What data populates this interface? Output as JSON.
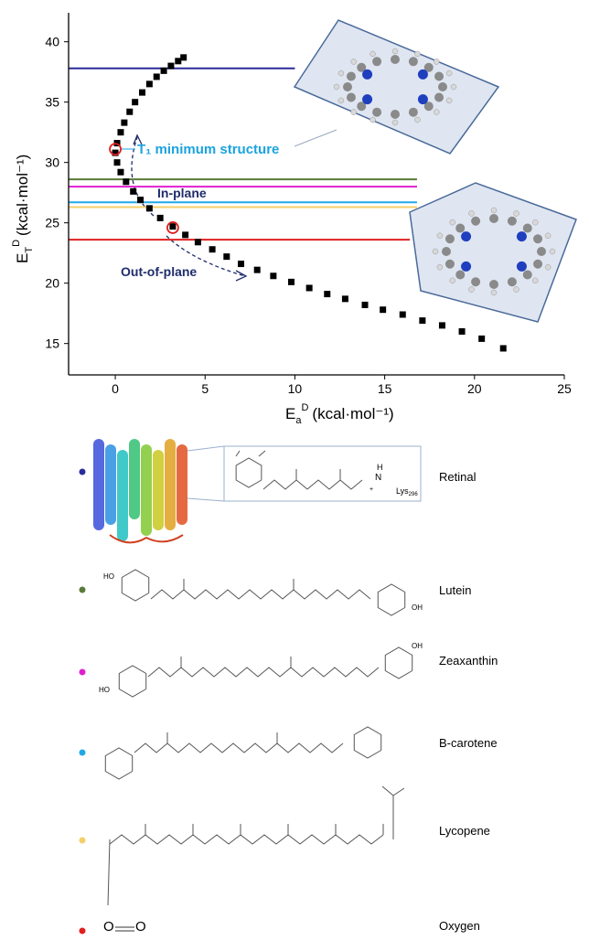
{
  "chart_data": {
    "type": "scatter",
    "xlabel": {
      "symbol": "E",
      "sub": "a",
      "sup": "D",
      "unit": "(kcal·mol⁻¹)"
    },
    "ylabel": {
      "symbol": "E",
      "sub": "T",
      "sup": "D",
      "unit": "(kcal·mol⁻¹)"
    },
    "x": [
      3.8,
      3.5,
      3.1,
      2.7,
      2.3,
      1.9,
      1.5,
      1.1,
      0.8,
      0.5,
      0.3,
      0.1,
      0,
      0.1,
      0.3,
      0.6,
      1,
      1.4,
      1.9,
      2.5,
      3.2,
      3.9,
      4.6,
      5.4,
      6.2,
      7,
      7.9,
      8.8,
      9.8,
      10.8,
      11.8,
      12.8,
      13.9,
      14.9,
      16,
      17.1,
      18.2,
      19.3,
      20.4,
      21.6
    ],
    "y": [
      38.7,
      38.4,
      38,
      37.6,
      37.1,
      36.5,
      35.8,
      35,
      34.2,
      33.3,
      32.5,
      31.6,
      30.8,
      30,
      29.2,
      28.4,
      27.6,
      26.9,
      26.2,
      25.4,
      24.7,
      24,
      23.4,
      22.8,
      22.2,
      21.6,
      21.1,
      20.6,
      20.1,
      19.6,
      19.1,
      18.7,
      18.2,
      17.8,
      17.4,
      16.9,
      16.5,
      16,
      15.4,
      14.6
    ],
    "color": "#000000",
    "highlights": {
      "x": [
        0,
        3.2
      ],
      "y": [
        31.1,
        24.6
      ],
      "color": "#e02020"
    },
    "xlim": [
      -2.6,
      25
    ],
    "ylim": [
      12.4,
      42.4
    ],
    "xticks": [
      0,
      5,
      10,
      15,
      20,
      25
    ],
    "yticks": [
      15,
      20,
      25,
      30,
      35,
      40
    ],
    "levels": [
      {
        "name": "Retinal",
        "color": "#2b2b9b",
        "value": 37.8,
        "x_end": 10
      },
      {
        "name": "Lutein",
        "color": "#5a7a3a",
        "value": 28.6,
        "x_end": 16.8
      },
      {
        "name": "Zeaxanthin",
        "color": "#e020d0",
        "value": 28.0,
        "x_end": 16.8
      },
      {
        "name": "B-carotene",
        "color": "#20a8e8",
        "value": 26.7,
        "x_end": 16.8
      },
      {
        "name": "Lycopene",
        "color": "#f5cf6a",
        "value": 26.3,
        "x_end": 16.8
      },
      {
        "name": "Oxygen",
        "color": "#e02020",
        "value": 23.6,
        "x_end": 16.4
      }
    ],
    "annotations": [
      "T₁ minimum structure",
      "In-plane",
      "Out-of-plane"
    ]
  },
  "molecule_labels": {
    "retinal": [
      "H",
      "N",
      "+",
      "Lys",
      "296"
    ],
    "lutein": [
      "HO",
      "OH"
    ],
    "zeaxanthin": [
      "OH",
      "HO"
    ],
    "oxygen": [
      "O",
      "O"
    ]
  }
}
